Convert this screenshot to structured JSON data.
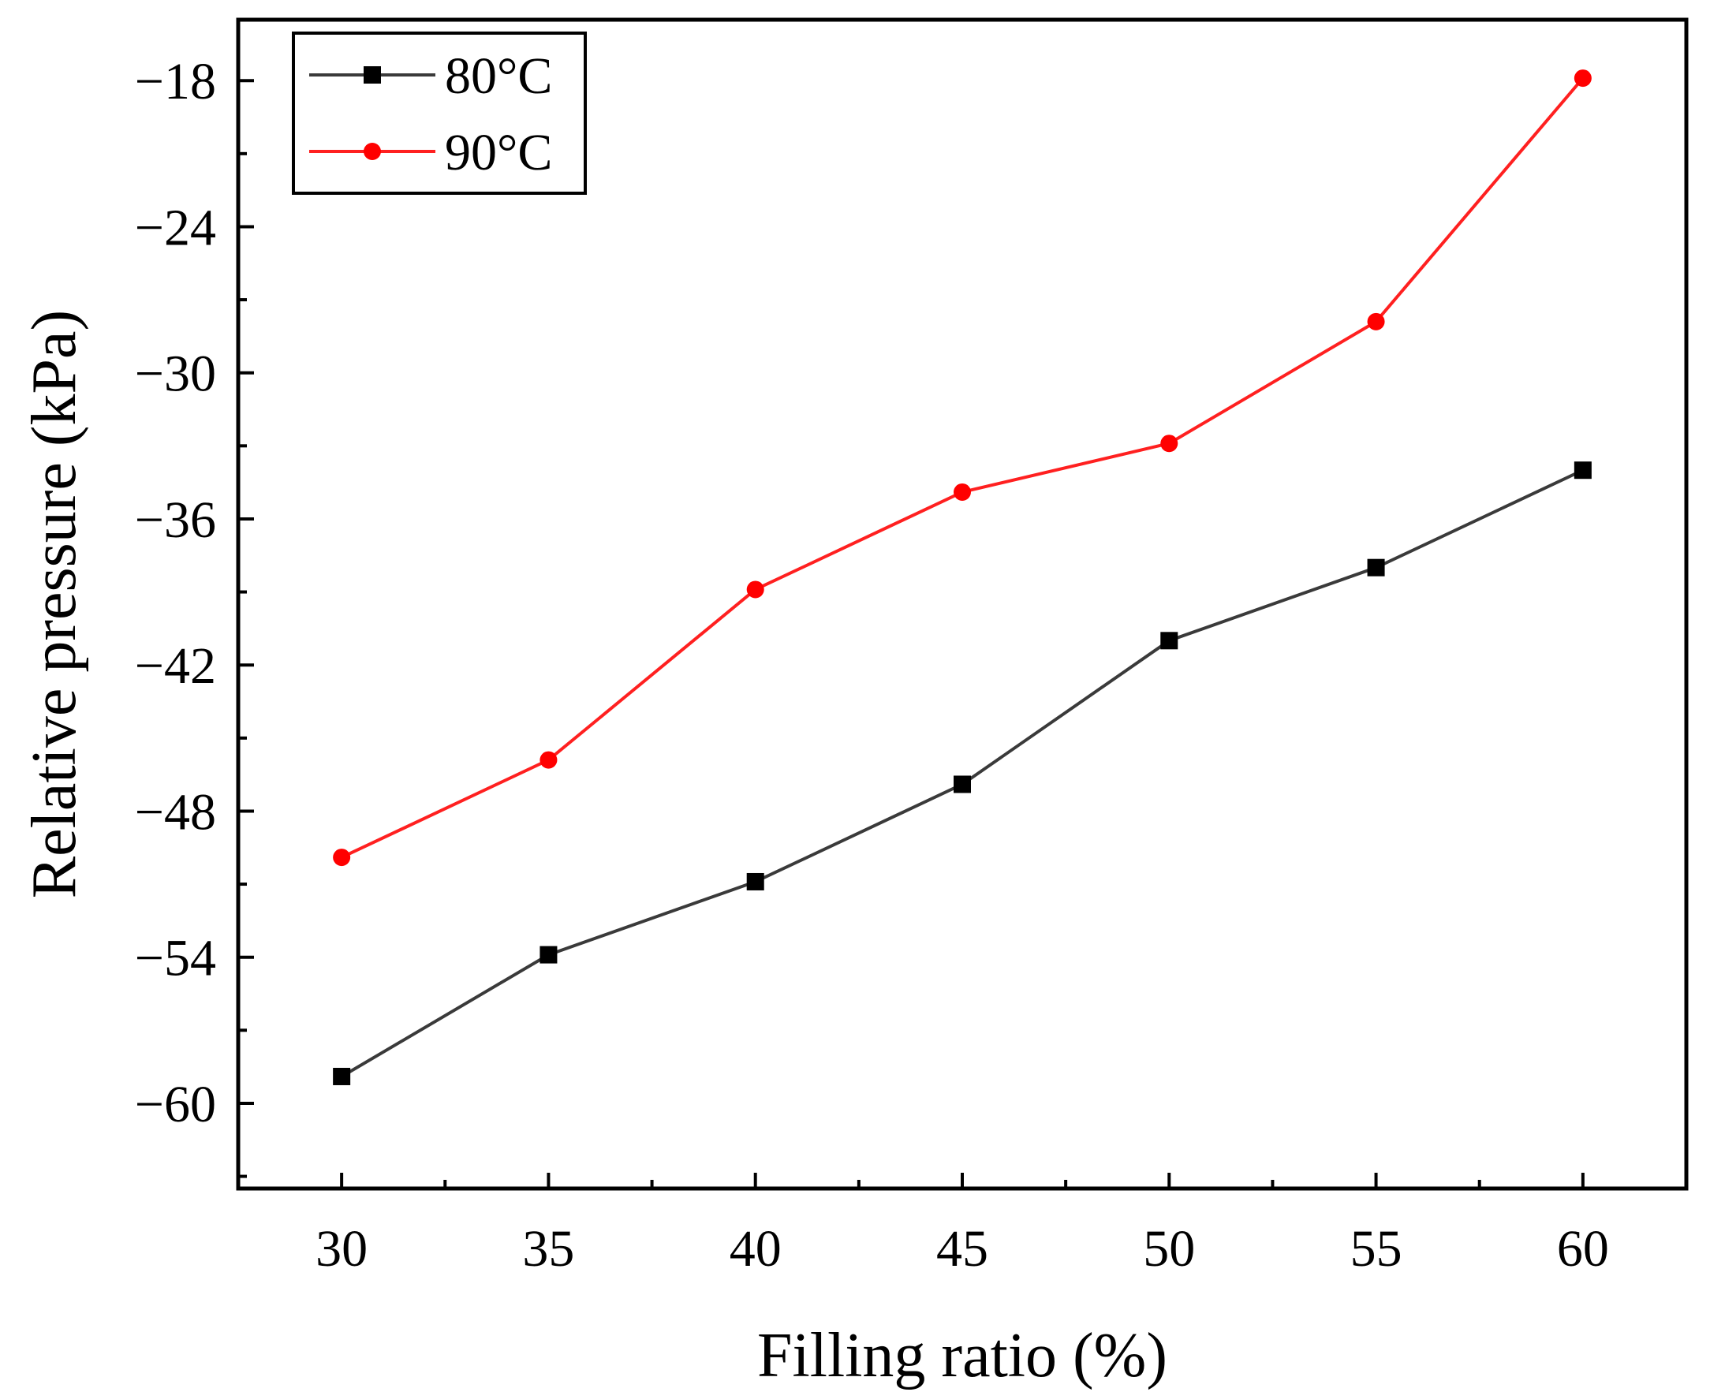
{
  "chart_data": {
    "type": "line",
    "title": "",
    "xlabel": "Filling ratio (%)",
    "ylabel": "Relative pressure (kPa)",
    "x": [
      30,
      35,
      40,
      45,
      50,
      55,
      60
    ],
    "xlim": [
      27.5,
      62.5
    ],
    "ylim": [
      -63.5,
      -15.5
    ],
    "xticks": [
      30,
      35,
      40,
      45,
      50,
      55,
      60
    ],
    "xtick_labels": [
      "30",
      "35",
      "40",
      "45",
      "50",
      "55",
      "60"
    ],
    "xminor_ticks": [
      32.5,
      37.5,
      42.5,
      47.5,
      52.5,
      57.5
    ],
    "yticks": [
      -60,
      -54,
      -48,
      -42,
      -36,
      -30,
      -24,
      -18
    ],
    "ytick_labels": [
      "−60",
      "−54",
      "−48",
      "−42",
      "−36",
      "−30",
      "−24",
      "−18"
    ],
    "yminor_ticks": [
      -63,
      -57,
      -51,
      -45,
      -39,
      -33,
      -27,
      -21
    ],
    "grid": false,
    "legend_position": "top-left",
    "series": [
      {
        "name": "80°C",
        "color": "#3a3a3a",
        "marker_color": "#000000",
        "marker": "square",
        "values": [
          -58.9,
          -53.9,
          -50.9,
          -46.9,
          -41.0,
          -38.0,
          -34.0
        ]
      },
      {
        "name": "90°C",
        "color": "#ff2020",
        "marker_color": "#ff0000",
        "marker": "circle",
        "values": [
          -49.9,
          -45.9,
          -38.9,
          -34.9,
          -32.9,
          -27.9,
          -17.9
        ]
      }
    ]
  }
}
